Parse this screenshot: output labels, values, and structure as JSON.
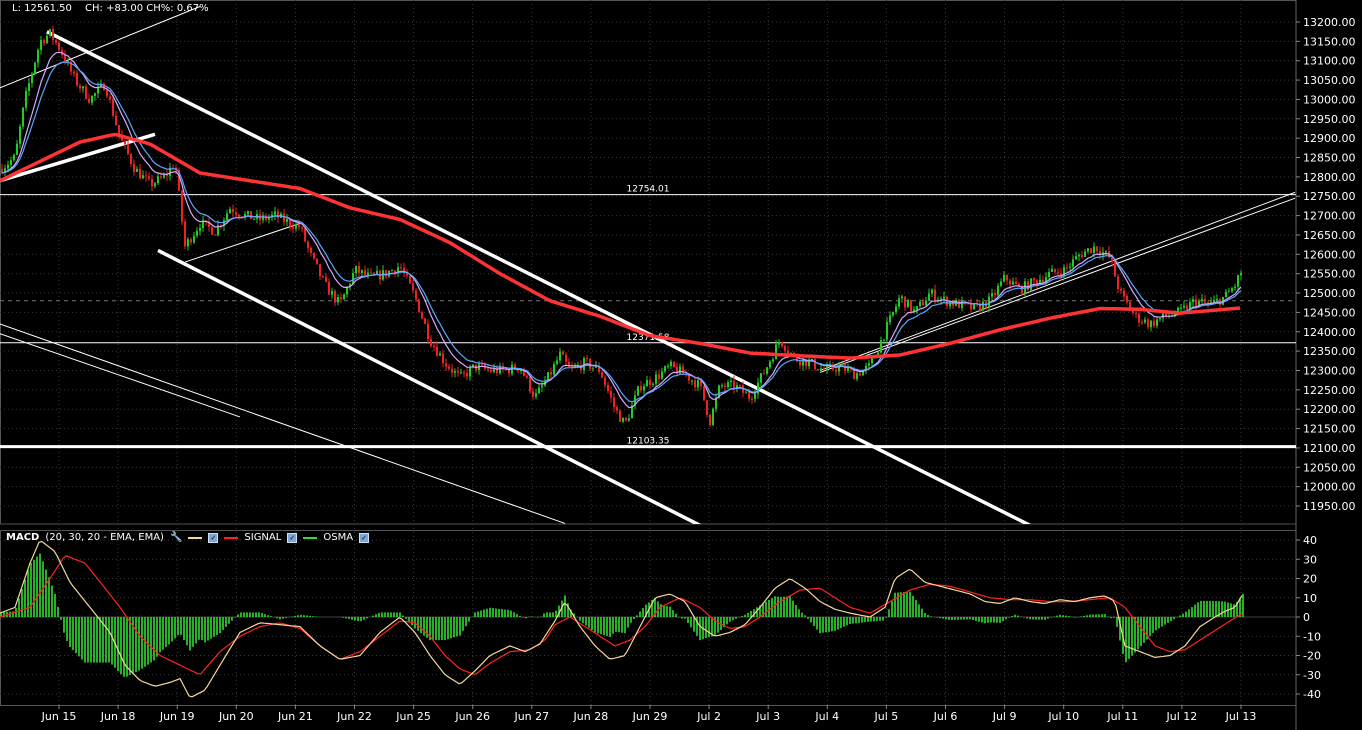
{
  "header": {
    "last": "L: 12561.50",
    "change": "CH: +83.00 CH%: 0.67%"
  },
  "macd_header": {
    "name": "MACD",
    "params": "(20, 30, 20 - EMA, EMA)",
    "signal": "SIGNAL",
    "osma": "OSMA"
  },
  "colors": {
    "background": "#000000",
    "bull_candle": "#22cc22",
    "bear_candle": "#ee2222",
    "slow_ma": "#ff3333",
    "fast_ma_1": "#5aa8ff",
    "fast_ma_2": "#d9a8ff",
    "macd_line": "#f4d89a",
    "signal_line": "#ff2222",
    "osma_hist": "#33dd33"
  },
  "chart_data": [
    {
      "type": "candlestick",
      "ylim": [
        11900,
        13240
      ],
      "y_ticks": [
        "13200.00",
        "13150.00",
        "13100.00",
        "13050.00",
        "13000.00",
        "12950.00",
        "12900.00",
        "12850.00",
        "12800.00",
        "12750.00",
        "12700.00",
        "12650.00",
        "12600.00",
        "12550.00",
        "12500.00",
        "12450.00",
        "12400.00",
        "12350.00",
        "12300.00",
        "12250.00",
        "12200.00",
        "12150.00",
        "12100.00",
        "12050.00",
        "12000.00",
        "11950.00"
      ],
      "x_labels": [
        "Jun 15",
        "Jun 18",
        "Jun 19",
        "Jun 20",
        "Jun 21",
        "Jun 22",
        "Jun 25",
        "Jun 26",
        "Jun 27",
        "Jun 28",
        "Jun 29",
        "Jul 2",
        "Jul 3",
        "Jul 4",
        "Jul 5",
        "Jul 6",
        "Jul 9",
        "Jul 10",
        "Jul 11",
        "Jul 12",
        "Jul 13"
      ],
      "levels": [
        {
          "value": 12754.01,
          "label": "12754.01"
        },
        {
          "value": 12371.58,
          "label": "12371.58"
        },
        {
          "value": 12103.35,
          "label": "12103.35"
        }
      ],
      "last_price": 12561.5,
      "close_path": [
        [
          0,
          12820
        ],
        [
          15,
          12850
        ],
        [
          25,
          13000
        ],
        [
          40,
          13150
        ],
        [
          50,
          13170
        ],
        [
          60,
          13130
        ],
        [
          75,
          13050
        ],
        [
          90,
          13000
        ],
        [
          105,
          13040
        ],
        [
          120,
          12900
        ],
        [
          135,
          12820
        ],
        [
          150,
          12780
        ],
        [
          165,
          12800
        ],
        [
          175,
          12840
        ],
        [
          185,
          12620
        ],
        [
          200,
          12680
        ],
        [
          215,
          12660
        ],
        [
          230,
          12720
        ],
        [
          245,
          12700
        ],
        [
          260,
          12690
        ],
        [
          275,
          12700
        ],
        [
          290,
          12680
        ],
        [
          300,
          12670
        ],
        [
          310,
          12600
        ],
        [
          325,
          12520
        ],
        [
          340,
          12470
        ],
        [
          355,
          12560
        ],
        [
          370,
          12540
        ],
        [
          385,
          12550
        ],
        [
          400,
          12570
        ],
        [
          415,
          12490
        ],
        [
          430,
          12380
        ],
        [
          445,
          12320
        ],
        [
          460,
          12280
        ],
        [
          475,
          12310
        ],
        [
          490,
          12300
        ],
        [
          505,
          12300
        ],
        [
          520,
          12310
        ],
        [
          535,
          12230
        ],
        [
          550,
          12290
        ],
        [
          560,
          12340
        ],
        [
          570,
          12300
        ],
        [
          585,
          12320
        ],
        [
          600,
          12300
        ],
        [
          615,
          12200
        ],
        [
          625,
          12160
        ],
        [
          640,
          12260
        ],
        [
          655,
          12280
        ],
        [
          670,
          12310
        ],
        [
          685,
          12290
        ],
        [
          700,
          12260
        ],
        [
          710,
          12170
        ],
        [
          720,
          12260
        ],
        [
          735,
          12260
        ],
        [
          750,
          12230
        ],
        [
          765,
          12300
        ],
        [
          780,
          12380
        ],
        [
          795,
          12330
        ],
        [
          810,
          12320
        ],
        [
          825,
          12300
        ],
        [
          840,
          12310
        ],
        [
          855,
          12290
        ],
        [
          870,
          12310
        ],
        [
          885,
          12400
        ],
        [
          900,
          12490
        ],
        [
          915,
          12450
        ],
        [
          930,
          12500
        ],
        [
          945,
          12480
        ],
        [
          960,
          12470
        ],
        [
          975,
          12460
        ],
        [
          990,
          12480
        ],
        [
          1005,
          12540
        ],
        [
          1020,
          12510
        ],
        [
          1035,
          12530
        ],
        [
          1050,
          12550
        ],
        [
          1065,
          12560
        ],
        [
          1080,
          12600
        ],
        [
          1095,
          12620
        ],
        [
          1110,
          12590
        ],
        [
          1120,
          12500
        ],
        [
          1135,
          12440
        ],
        [
          1150,
          12420
        ],
        [
          1165,
          12440
        ],
        [
          1180,
          12450
        ],
        [
          1195,
          12480
        ],
        [
          1210,
          12470
        ],
        [
          1225,
          12490
        ],
        [
          1235,
          12520
        ],
        [
          1243,
          12565
        ]
      ],
      "slow_ma_path": [
        [
          0,
          12790
        ],
        [
          40,
          12840
        ],
        [
          80,
          12890
        ],
        [
          115,
          12910
        ],
        [
          150,
          12885
        ],
        [
          200,
          12810
        ],
        [
          250,
          12790
        ],
        [
          300,
          12770
        ],
        [
          350,
          12720
        ],
        [
          400,
          12690
        ],
        [
          450,
          12630
        ],
        [
          500,
          12550
        ],
        [
          550,
          12480
        ],
        [
          600,
          12440
        ],
        [
          650,
          12390
        ],
        [
          700,
          12370
        ],
        [
          750,
          12345
        ],
        [
          800,
          12338
        ],
        [
          850,
          12332
        ],
        [
          900,
          12340
        ],
        [
          950,
          12370
        ],
        [
          1000,
          12405
        ],
        [
          1050,
          12435
        ],
        [
          1100,
          12460
        ],
        [
          1140,
          12458
        ],
        [
          1180,
          12448
        ],
        [
          1243,
          12462
        ]
      ],
      "trendlines": [
        {
          "from": [
            47,
            13175
          ],
          "to": [
            1030,
            11900
          ]
        },
        {
          "from": [
            158,
            12610
          ],
          "to": [
            700,
            11900
          ]
        },
        {
          "from": [
            0,
            12790
          ],
          "to": [
            155,
            12910
          ]
        },
        {
          "from": [
            0,
            13030
          ],
          "to": [
            200,
            13240
          ]
        },
        {
          "from": [
            185,
            12580
          ],
          "to": [
            300,
            12680
          ]
        },
        {
          "from": [
            820,
            12300
          ],
          "to": [
            1295,
            12760
          ]
        },
        {
          "from": [
            820,
            12295
          ],
          "to": [
            1295,
            12745
          ]
        },
        {
          "from": [
            0,
            12420
          ],
          "to": [
            565,
            11905
          ]
        },
        {
          "from": [
            0,
            12395
          ],
          "to": [
            240,
            12180
          ]
        }
      ]
    },
    {
      "type": "macd",
      "ylim": [
        -43,
        43
      ],
      "y_ticks": [
        "40",
        "30",
        "20",
        "10",
        "0",
        "-10",
        "-20",
        "-30",
        "-40"
      ],
      "macd_path": [
        [
          0,
          2
        ],
        [
          15,
          5
        ],
        [
          30,
          28
        ],
        [
          40,
          40
        ],
        [
          55,
          34
        ],
        [
          70,
          18
        ],
        [
          90,
          5
        ],
        [
          110,
          -8
        ],
        [
          125,
          -25
        ],
        [
          140,
          -33
        ],
        [
          155,
          -36
        ],
        [
          170,
          -34
        ],
        [
          180,
          -32
        ],
        [
          190,
          -42
        ],
        [
          205,
          -38
        ],
        [
          220,
          -25
        ],
        [
          240,
          -8
        ],
        [
          260,
          -3
        ],
        [
          280,
          -4
        ],
        [
          300,
          -5
        ],
        [
          320,
          -15
        ],
        [
          340,
          -22
        ],
        [
          360,
          -20
        ],
        [
          380,
          -8
        ],
        [
          400,
          0
        ],
        [
          415,
          -8
        ],
        [
          430,
          -20
        ],
        [
          445,
          -30
        ],
        [
          460,
          -35
        ],
        [
          475,
          -28
        ],
        [
          490,
          -20
        ],
        [
          510,
          -15
        ],
        [
          525,
          -18
        ],
        [
          540,
          -14
        ],
        [
          555,
          -2
        ],
        [
          565,
          8
        ],
        [
          580,
          -5
        ],
        [
          595,
          -15
        ],
        [
          610,
          -22
        ],
        [
          625,
          -20
        ],
        [
          640,
          -5
        ],
        [
          655,
          10
        ],
        [
          670,
          12
        ],
        [
          685,
          8
        ],
        [
          700,
          -5
        ],
        [
          715,
          -10
        ],
        [
          730,
          -8
        ],
        [
          745,
          -4
        ],
        [
          760,
          5
        ],
        [
          775,
          15
        ],
        [
          790,
          20
        ],
        [
          805,
          15
        ],
        [
          820,
          8
        ],
        [
          835,
          4
        ],
        [
          850,
          2
        ],
        [
          870,
          0
        ],
        [
          885,
          5
        ],
        [
          895,
          20
        ],
        [
          910,
          25
        ],
        [
          925,
          18
        ],
        [
          940,
          16
        ],
        [
          955,
          14
        ],
        [
          970,
          12
        ],
        [
          985,
          8
        ],
        [
          1000,
          7
        ],
        [
          1015,
          10
        ],
        [
          1030,
          8
        ],
        [
          1045,
          7
        ],
        [
          1060,
          9
        ],
        [
          1075,
          8
        ],
        [
          1090,
          10
        ],
        [
          1105,
          11
        ],
        [
          1115,
          8
        ],
        [
          1125,
          -15
        ],
        [
          1140,
          -18
        ],
        [
          1155,
          -21
        ],
        [
          1170,
          -20
        ],
        [
          1185,
          -15
        ],
        [
          1200,
          -5
        ],
        [
          1215,
          0
        ],
        [
          1225,
          3
        ],
        [
          1235,
          5
        ],
        [
          1243,
          12
        ]
      ],
      "signal_path": [
        [
          0,
          0
        ],
        [
          30,
          5
        ],
        [
          50,
          20
        ],
        [
          65,
          32
        ],
        [
          85,
          28
        ],
        [
          105,
          15
        ],
        [
          120,
          5
        ],
        [
          140,
          -10
        ],
        [
          160,
          -20
        ],
        [
          180,
          -25
        ],
        [
          200,
          -30
        ],
        [
          220,
          -18
        ],
        [
          240,
          -10
        ],
        [
          260,
          -5
        ],
        [
          280,
          -3
        ],
        [
          300,
          -6
        ],
        [
          320,
          -15
        ],
        [
          340,
          -22
        ],
        [
          360,
          -18
        ],
        [
          380,
          -10
        ],
        [
          400,
          -2
        ],
        [
          415,
          -3
        ],
        [
          430,
          -10
        ],
        [
          445,
          -20
        ],
        [
          460,
          -27
        ],
        [
          475,
          -30
        ],
        [
          490,
          -24
        ],
        [
          510,
          -18
        ],
        [
          530,
          -17
        ],
        [
          545,
          -12
        ],
        [
          555,
          -4
        ],
        [
          570,
          0
        ],
        [
          585,
          -5
        ],
        [
          600,
          -10
        ],
        [
          615,
          -15
        ],
        [
          630,
          -12
        ],
        [
          645,
          -5
        ],
        [
          660,
          5
        ],
        [
          680,
          10
        ],
        [
          700,
          5
        ],
        [
          715,
          -2
        ],
        [
          730,
          -6
        ],
        [
          745,
          -5
        ],
        [
          760,
          0
        ],
        [
          780,
          8
        ],
        [
          800,
          14
        ],
        [
          820,
          15
        ],
        [
          835,
          10
        ],
        [
          850,
          5
        ],
        [
          870,
          2
        ],
        [
          890,
          8
        ],
        [
          910,
          14
        ],
        [
          930,
          17
        ],
        [
          950,
          16
        ],
        [
          970,
          13
        ],
        [
          990,
          10
        ],
        [
          1010,
          9
        ],
        [
          1030,
          9
        ],
        [
          1050,
          8
        ],
        [
          1070,
          8
        ],
        [
          1090,
          9
        ],
        [
          1110,
          10
        ],
        [
          1125,
          5
        ],
        [
          1140,
          -5
        ],
        [
          1155,
          -15
        ],
        [
          1170,
          -18
        ],
        [
          1185,
          -17
        ],
        [
          1200,
          -12
        ],
        [
          1215,
          -7
        ],
        [
          1230,
          -2
        ],
        [
          1243,
          2
        ]
      ]
    }
  ]
}
